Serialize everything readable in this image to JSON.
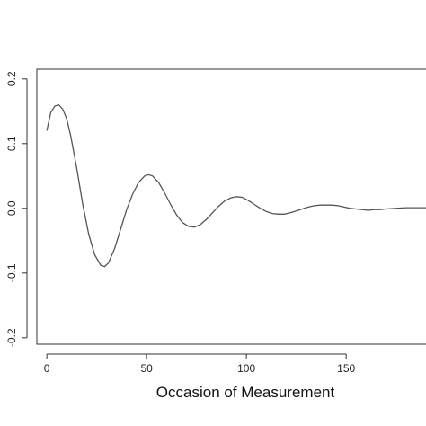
{
  "chart_data": {
    "type": "line",
    "title": "",
    "xlabel": "Occasion of Measurement",
    "ylabel": "",
    "xlim": [
      -5,
      190
    ],
    "ylim": [
      -0.21,
      0.215
    ],
    "x_ticks": [
      0,
      50,
      100,
      150
    ],
    "x_tick_labels": [
      "0",
      "50",
      "100",
      "150"
    ],
    "y_ticks": [
      -0.2,
      -0.1,
      0.0,
      0.1,
      0.2
    ],
    "y_tick_labels": [
      "-0.2",
      "-0.1",
      "0.0",
      "0.1",
      "0.2"
    ],
    "grid": false,
    "line_color": "#555555",
    "series": [
      {
        "x": [
          0,
          2,
          4,
          6,
          8,
          10,
          12,
          15,
          18,
          21,
          24,
          27,
          29,
          31,
          34,
          37,
          40,
          43,
          46,
          49,
          51,
          53,
          56,
          59,
          62,
          65,
          68,
          71,
          74,
          77,
          80,
          83,
          86,
          89,
          92,
          95,
          98,
          101,
          104,
          107,
          110,
          113,
          116,
          119,
          122,
          125,
          128,
          131,
          134,
          137,
          140,
          143,
          146,
          149,
          152,
          155,
          158,
          161,
          164,
          167,
          170,
          175,
          180,
          185,
          190
        ],
        "y": [
          0.12,
          0.148,
          0.158,
          0.16,
          0.153,
          0.138,
          0.112,
          0.062,
          0.006,
          -0.04,
          -0.072,
          -0.088,
          -0.09,
          -0.084,
          -0.062,
          -0.032,
          -0.002,
          0.022,
          0.04,
          0.05,
          0.052,
          0.05,
          0.04,
          0.024,
          0.006,
          -0.01,
          -0.022,
          -0.028,
          -0.029,
          -0.025,
          -0.017,
          -0.007,
          0.003,
          0.011,
          0.016,
          0.018,
          0.017,
          0.012,
          0.006,
          0.0,
          -0.005,
          -0.008,
          -0.009,
          -0.009,
          -0.007,
          -0.004,
          -0.001,
          0.002,
          0.004,
          0.005,
          0.005,
          0.005,
          0.004,
          0.002,
          0.0,
          -0.001,
          -0.002,
          -0.003,
          -0.002,
          -0.002,
          -0.001,
          0.0,
          0.001,
          0.001,
          0.001
        ]
      }
    ]
  }
}
